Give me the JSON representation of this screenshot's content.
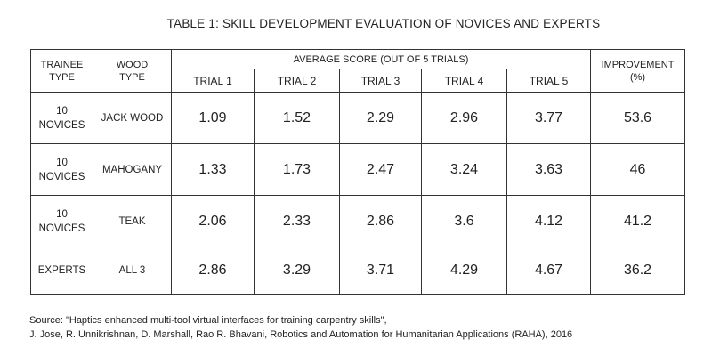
{
  "title": "TABLE 1: SKILL DEVELOPMENT EVALUATION OF NOVICES AND EXPERTS",
  "columns": {
    "trainee_type": [
      "TRAINEE",
      "TYPE"
    ],
    "wood_type": [
      "WOOD",
      "TYPE"
    ],
    "average_score": "AVERAGE SCORE (OUT OF 5 TRIALS)",
    "trials": [
      "TRIAL 1",
      "TRIAL 2",
      "TRIAL 3",
      "TRIAL 4",
      "TRIAL 5"
    ],
    "improvement": [
      "IMPROVEMENT",
      "(%)"
    ]
  },
  "chart_data": {
    "type": "table",
    "title": "TABLE 1: SKILL DEVELOPMENT EVALUATION OF NOVICES AND EXPERTS",
    "rows": [
      {
        "trainee": [
          "10",
          "NOVICES"
        ],
        "wood": "JACK WOOD",
        "scores": [
          "1.09",
          "1.52",
          "2.29",
          "2.96",
          "3.77"
        ],
        "improvement": "53.6"
      },
      {
        "trainee": [
          "10",
          "NOVICES"
        ],
        "wood": "MAHOGANY",
        "scores": [
          "1.33",
          "1.73",
          "2.47",
          "3.24",
          "3.63"
        ],
        "improvement": "46"
      },
      {
        "trainee": [
          "10",
          "NOVICES"
        ],
        "wood": "TEAK",
        "scores": [
          "2.06",
          "2.33",
          "2.86",
          "3.6",
          "4.12"
        ],
        "improvement": "41.2"
      },
      {
        "trainee": [
          "EXPERTS"
        ],
        "wood": "ALL 3",
        "scores": [
          "2.86",
          "3.29",
          "3.71",
          "4.29",
          "4.67"
        ],
        "improvement": "36.2"
      }
    ]
  },
  "source": {
    "line1": "Source: \"Haptics enhanced multi-tool virtual interfaces for training carpentry skills\",",
    "line2": "J. Jose, R. Unnikrishnan, D. Marshall, Rao R. Bhavani, Robotics and Automation for Humanitarian Applications (RAHA), 2016"
  }
}
